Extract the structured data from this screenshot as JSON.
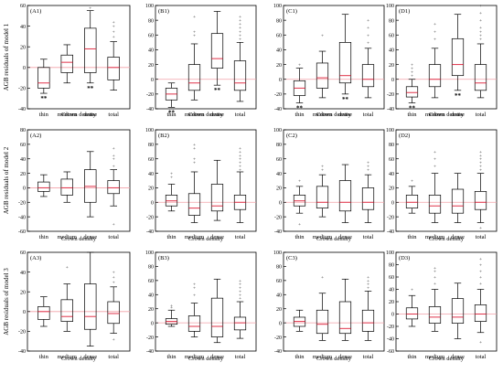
{
  "x_axis_label": "Crown density",
  "row_ylabels": [
    "AGB residuals of model 1",
    "AGB residuals of model 2",
    "AGB residuals of model 3"
  ],
  "colors": {
    "box": "#000000",
    "median": "#e0334a",
    "zero_line": "#f2a0a8",
    "axes": "#000000"
  },
  "chart_data": [
    {
      "type": "box",
      "panel_label": "(A1)",
      "categories": [
        "thin",
        "medium",
        "dense",
        "total"
      ],
      "ylim": [
        -40,
        60
      ],
      "yticks": [
        -40,
        -20,
        0,
        20,
        40,
        60
      ],
      "boxes": [
        {
          "whisker_low": -25,
          "q1": -20,
          "median": -15,
          "q3": 0,
          "whisker_high": 8,
          "outliers": [],
          "marks": [
            "**"
          ]
        },
        {
          "whisker_low": -15,
          "q1": -5,
          "median": 5,
          "q3": 12,
          "whisker_high": 22,
          "outliers": [],
          "marks": []
        },
        {
          "whisker_low": -15,
          "q1": -5,
          "median": 18,
          "q3": 38,
          "whisker_high": 55,
          "outliers": [
            58
          ],
          "marks": [
            "**"
          ]
        },
        {
          "whisker_low": -22,
          "q1": -12,
          "median": 0,
          "q3": 10,
          "whisker_high": 25,
          "outliers": [
            30,
            35,
            40,
            44
          ],
          "marks": []
        }
      ]
    },
    {
      "type": "box",
      "panel_label": "(B1)",
      "categories": [
        "thin",
        "medium",
        "dense",
        "total"
      ],
      "ylim": [
        -40,
        100
      ],
      "yticks": [
        -40,
        -20,
        0,
        20,
        40,
        60,
        80,
        100
      ],
      "boxes": [
        {
          "whisker_low": -38,
          "q1": -28,
          "median": -20,
          "q3": -12,
          "whisker_high": -5,
          "outliers": [],
          "marks": [
            "**"
          ]
        },
        {
          "whisker_low": -28,
          "q1": -15,
          "median": -5,
          "q3": 20,
          "whisker_high": 48,
          "outliers": [
            60,
            65,
            85
          ],
          "marks": []
        },
        {
          "whisker_low": -8,
          "q1": 15,
          "median": 28,
          "q3": 62,
          "whisker_high": 92,
          "outliers": [],
          "marks": [
            "**"
          ]
        },
        {
          "whisker_low": -30,
          "q1": -15,
          "median": -5,
          "q3": 25,
          "whisker_high": 50,
          "outliers": [
            55,
            60,
            65,
            70,
            75,
            80,
            85
          ],
          "marks": []
        }
      ]
    },
    {
      "type": "box",
      "panel_label": "(C1)",
      "categories": [
        "thin",
        "medium",
        "dense",
        "total"
      ],
      "ylim": [
        -40,
        100
      ],
      "yticks": [
        -40,
        -20,
        0,
        20,
        40,
        60,
        80,
        100
      ],
      "boxes": [
        {
          "whisker_low": -32,
          "q1": -22,
          "median": -12,
          "q3": -2,
          "whisker_high": 15,
          "outliers": [
            20
          ],
          "marks": [
            "**"
          ]
        },
        {
          "whisker_low": -25,
          "q1": -12,
          "median": 2,
          "q3": 22,
          "whisker_high": 38,
          "outliers": [
            60
          ],
          "marks": []
        },
        {
          "whisker_low": -20,
          "q1": -5,
          "median": 5,
          "q3": 50,
          "whisker_high": 88,
          "outliers": [],
          "marks": [
            "**"
          ]
        },
        {
          "whisker_low": -25,
          "q1": -10,
          "median": 0,
          "q3": 20,
          "whisker_high": 42,
          "outliers": [
            50,
            60,
            70,
            80
          ],
          "marks": []
        }
      ]
    },
    {
      "type": "box",
      "panel_label": "(D1)",
      "categories": [
        "thin",
        "medium",
        "dense",
        "total"
      ],
      "ylim": [
        -40,
        100
      ],
      "yticks": [
        -40,
        -20,
        0,
        20,
        40,
        60,
        80,
        100
      ],
      "boxes": [
        {
          "whisker_low": -32,
          "q1": -24,
          "median": -18,
          "q3": -10,
          "whisker_high": 0,
          "outliers": [
            5,
            10,
            15,
            20
          ],
          "marks": [
            "**"
          ]
        },
        {
          "whisker_low": -25,
          "q1": -10,
          "median": 0,
          "q3": 20,
          "whisker_high": 42,
          "outliers": [
            55,
            65,
            75
          ],
          "marks": []
        },
        {
          "whisker_low": -15,
          "q1": 5,
          "median": 20,
          "q3": 55,
          "whisker_high": 88,
          "outliers": [],
          "marks": [
            "**"
          ]
        },
        {
          "whisker_low": -25,
          "q1": -15,
          "median": -5,
          "q3": 20,
          "whisker_high": 48,
          "outliers": [
            55,
            60,
            65,
            70,
            80,
            90,
            100
          ],
          "marks": []
        }
      ]
    },
    {
      "type": "box",
      "panel_label": "(A2)",
      "categories": [
        "thin",
        "medium",
        "dense",
        "total"
      ],
      "ylim": [
        -60,
        80
      ],
      "yticks": [
        -60,
        -40,
        -20,
        0,
        20,
        40,
        60,
        80
      ],
      "boxes": [
        {
          "whisker_low": -12,
          "q1": -5,
          "median": 0,
          "q3": 8,
          "whisker_high": 18,
          "outliers": [],
          "marks": []
        },
        {
          "whisker_low": -20,
          "q1": -10,
          "median": 0,
          "q3": 12,
          "whisker_high": 22,
          "outliers": [],
          "marks": []
        },
        {
          "whisker_low": -40,
          "q1": -20,
          "median": 2,
          "q3": 25,
          "whisker_high": 50,
          "outliers": [],
          "marks": []
        },
        {
          "whisker_low": -25,
          "q1": -8,
          "median": 0,
          "q3": 10,
          "whisker_high": 25,
          "outliers": [
            30,
            40,
            45,
            55,
            -50
          ],
          "marks": []
        }
      ]
    },
    {
      "type": "box",
      "panel_label": "(B2)",
      "categories": [
        "thin",
        "medium",
        "dense",
        "total"
      ],
      "ylim": [
        -40,
        100
      ],
      "yticks": [
        -40,
        -20,
        0,
        20,
        40,
        60,
        80,
        100
      ],
      "boxes": [
        {
          "whisker_low": -12,
          "q1": -5,
          "median": 2,
          "q3": 10,
          "whisker_high": 25,
          "outliers": [
            35,
            40
          ],
          "marks": []
        },
        {
          "whisker_low": -28,
          "q1": -18,
          "median": -8,
          "q3": 12,
          "whisker_high": 42,
          "outliers": [
            55,
            60,
            75,
            80
          ],
          "marks": []
        },
        {
          "whisker_low": -25,
          "q1": -12,
          "median": -5,
          "q3": 25,
          "whisker_high": 58,
          "outliers": [],
          "marks": []
        },
        {
          "whisker_low": -28,
          "q1": -10,
          "median": 0,
          "q3": 10,
          "whisker_high": 42,
          "outliers": [
            45,
            50,
            55,
            60,
            65,
            70,
            75
          ],
          "marks": []
        }
      ]
    },
    {
      "type": "box",
      "panel_label": "(C2)",
      "categories": [
        "thin",
        "medium",
        "dense",
        "total"
      ],
      "ylim": [
        -40,
        100
      ],
      "yticks": [
        -40,
        -20,
        0,
        20,
        40,
        60,
        80,
        100
      ],
      "boxes": [
        {
          "whisker_low": -15,
          "q1": -5,
          "median": 2,
          "q3": 10,
          "whisker_high": 22,
          "outliers": [
            30,
            -30
          ],
          "marks": []
        },
        {
          "whisker_low": -20,
          "q1": -8,
          "median": 0,
          "q3": 22,
          "whisker_high": 38,
          "outliers": [
            45,
            50
          ],
          "marks": []
        },
        {
          "whisker_low": -28,
          "q1": -12,
          "median": 0,
          "q3": 30,
          "whisker_high": 52,
          "outliers": [],
          "marks": []
        },
        {
          "whisker_low": -28,
          "q1": -10,
          "median": 0,
          "q3": 20,
          "whisker_high": 38,
          "outliers": [
            45,
            50,
            55
          ],
          "marks": []
        }
      ]
    },
    {
      "type": "box",
      "panel_label": "(D2)",
      "categories": [
        "thin",
        "medium",
        "dense",
        "total"
      ],
      "ylim": [
        -40,
        100
      ],
      "yticks": [
        -40,
        -20,
        0,
        20,
        40,
        60,
        80,
        100
      ],
      "boxes": [
        {
          "whisker_low": -15,
          "q1": -8,
          "median": 0,
          "q3": 10,
          "whisker_high": 22,
          "outliers": [
            30
          ],
          "marks": []
        },
        {
          "whisker_low": -28,
          "q1": -15,
          "median": -5,
          "q3": 10,
          "whisker_high": 40,
          "outliers": [
            50,
            60,
            70
          ],
          "marks": []
        },
        {
          "whisker_low": -28,
          "q1": -15,
          "median": -5,
          "q3": 18,
          "whisker_high": 40,
          "outliers": [],
          "marks": []
        },
        {
          "whisker_low": -28,
          "q1": -10,
          "median": 0,
          "q3": 15,
          "whisker_high": 40,
          "outliers": [
            45,
            50,
            55,
            60,
            65,
            70,
            -35
          ],
          "marks": []
        }
      ]
    },
    {
      "type": "box",
      "panel_label": "(A3)",
      "categories": [
        "thin",
        "medium",
        "dense",
        "total"
      ],
      "ylim": [
        -40,
        60
      ],
      "yticks": [
        -40,
        -20,
        0,
        20,
        40,
        60
      ],
      "boxes": [
        {
          "whisker_low": -15,
          "q1": -8,
          "median": 0,
          "q3": 5,
          "whisker_high": 15,
          "outliers": [],
          "marks": []
        },
        {
          "whisker_low": -20,
          "q1": -10,
          "median": -5,
          "q3": 12,
          "whisker_high": 28,
          "outliers": [
            45
          ],
          "marks": []
        },
        {
          "whisker_low": -35,
          "q1": -18,
          "median": -5,
          "q3": 28,
          "whisker_high": 60,
          "outliers": [],
          "marks": []
        },
        {
          "whisker_low": -22,
          "q1": -12,
          "median": -2,
          "q3": 10,
          "whisker_high": 25,
          "outliers": [
            30,
            35,
            40,
            -28
          ],
          "marks": []
        }
      ]
    },
    {
      "type": "box",
      "panel_label": "(B3)",
      "categories": [
        "thin",
        "medium",
        "dense",
        "total"
      ],
      "ylim": [
        -40,
        100
      ],
      "yticks": [
        -40,
        -20,
        0,
        20,
        40,
        60,
        80,
        100
      ],
      "boxes": [
        {
          "whisker_low": -5,
          "q1": -2,
          "median": 2,
          "q3": 6,
          "whisker_high": 18,
          "outliers": [
            22,
            25
          ],
          "marks": []
        },
        {
          "whisker_low": -20,
          "q1": -12,
          "median": -5,
          "q3": 10,
          "whisker_high": 28,
          "outliers": [
            40,
            50,
            55
          ],
          "marks": []
        },
        {
          "whisker_low": -28,
          "q1": -20,
          "median": -5,
          "q3": 35,
          "whisker_high": 62,
          "outliers": [],
          "marks": []
        },
        {
          "whisker_low": -22,
          "q1": -10,
          "median": 0,
          "q3": 8,
          "whisker_high": 30,
          "outliers": [
            35,
            40,
            45,
            50,
            55,
            60
          ],
          "marks": []
        }
      ]
    },
    {
      "type": "box",
      "panel_label": "(C3)",
      "categories": [
        "thin",
        "medium",
        "dense",
        "total"
      ],
      "ylim": [
        -40,
        100
      ],
      "yticks": [
        -40,
        -20,
        0,
        20,
        40,
        60,
        80,
        100
      ],
      "boxes": [
        {
          "whisker_low": -12,
          "q1": -5,
          "median": 2,
          "q3": 8,
          "whisker_high": 18,
          "outliers": [],
          "marks": []
        },
        {
          "whisker_low": -25,
          "q1": -15,
          "median": -2,
          "q3": 18,
          "whisker_high": 42,
          "outliers": [
            65
          ],
          "marks": []
        },
        {
          "whisker_low": -25,
          "q1": -15,
          "median": -8,
          "q3": 30,
          "whisker_high": 62,
          "outliers": [],
          "marks": []
        },
        {
          "whisker_low": -25,
          "q1": -12,
          "median": 0,
          "q3": 18,
          "whisker_high": 45,
          "outliers": [
            50,
            55,
            60,
            65
          ],
          "marks": []
        }
      ]
    },
    {
      "type": "box",
      "panel_label": "(D3)",
      "categories": [
        "thin",
        "medium",
        "dense",
        "total"
      ],
      "ylim": [
        -60,
        100
      ],
      "yticks": [
        -60,
        -40,
        -20,
        0,
        20,
        40,
        60,
        80,
        100
      ],
      "boxes": [
        {
          "whisker_low": -20,
          "q1": -8,
          "median": 0,
          "q3": 10,
          "whisker_high": 30,
          "outliers": [
            40
          ],
          "marks": []
        },
        {
          "whisker_low": -28,
          "q1": -15,
          "median": -5,
          "q3": 12,
          "whisker_high": 40,
          "outliers": [
            50,
            60,
            70,
            75
          ],
          "marks": []
        },
        {
          "whisker_low": -40,
          "q1": -15,
          "median": -5,
          "q3": 25,
          "whisker_high": 50,
          "outliers": [],
          "marks": []
        },
        {
          "whisker_low": -30,
          "q1": -12,
          "median": 0,
          "q3": 15,
          "whisker_high": 40,
          "outliers": [
            50,
            60,
            70,
            80,
            90,
            -45
          ],
          "marks": []
        }
      ]
    }
  ]
}
